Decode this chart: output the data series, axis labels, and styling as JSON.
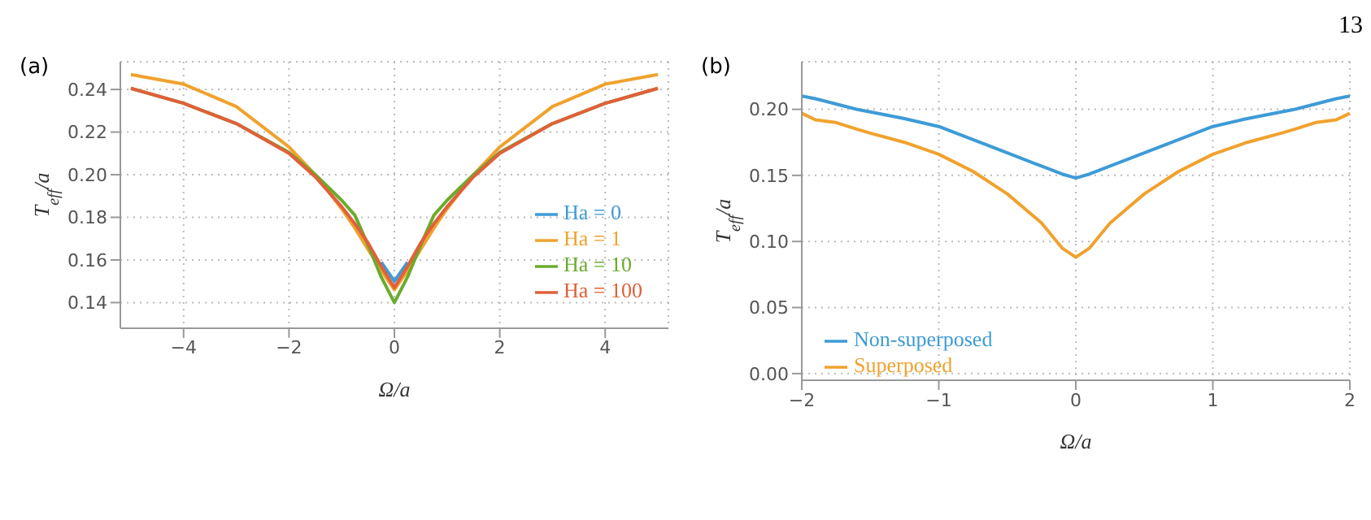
{
  "chart_data": [
    {
      "type": "line",
      "title": "(a)",
      "xlabel": "Ω/a",
      "ylabel": "T$_{eff}$/a",
      "x": [
        -5,
        -4,
        -3,
        -2,
        -1.5,
        -1,
        -0.75,
        -0.5,
        -0.25,
        0,
        0.25,
        0.5,
        0.75,
        1,
        1.5,
        2,
        3,
        4,
        5
      ],
      "xlim": [
        -5.2,
        5.2
      ],
      "xticks": [
        {
          "value": -4,
          "label": "−4"
        },
        {
          "value": -2,
          "label": "−2"
        },
        0,
        2,
        4
      ],
      "ylim": [
        0.128,
        0.253
      ],
      "yticks": [
        0.14,
        0.16,
        0.18,
        {
          "value": 0.2,
          "label": "0.20"
        },
        0.22,
        0.24
      ],
      "grid": true,
      "legend": "right",
      "line_style": "solid",
      "marker": "none",
      "series": [
        {
          "name": "Ha = 0",
          "color": "#3e9bd6",
          "values": [
            null,
            null,
            null,
            null,
            null,
            null,
            null,
            null,
            0.159,
            0.15,
            0.159,
            null,
            null,
            null,
            null,
            null,
            null,
            null,
            null
          ]
        },
        {
          "name": "Ha = 1",
          "color": "#f0a22e",
          "values": [
            0.247,
            0.2425,
            0.232,
            0.213,
            0.2,
            0.184,
            0.175,
            0.165,
            0.155,
            0.146,
            0.155,
            0.165,
            0.175,
            0.184,
            0.2,
            0.213,
            0.232,
            0.2425,
            0.247
          ]
        },
        {
          "name": "Ha = 10",
          "color": "#6aab2e",
          "values": [
            0.2405,
            0.2335,
            0.224,
            0.2105,
            0.2,
            0.188,
            0.181,
            0.167,
            0.152,
            0.14,
            0.152,
            0.167,
            0.181,
            0.188,
            0.2,
            0.2105,
            0.224,
            0.2335,
            0.2405
          ]
        },
        {
          "name": "Ha = 100",
          "color": "#e0603a",
          "values": [
            0.2405,
            0.2335,
            0.224,
            0.21,
            0.199,
            0.185,
            0.177,
            0.168,
            0.157,
            0.147,
            0.157,
            0.168,
            0.177,
            0.185,
            0.199,
            0.21,
            0.224,
            0.2335,
            0.2405
          ]
        }
      ]
    },
    {
      "type": "line",
      "title": "(b)",
      "xlabel": "Ω/a",
      "ylabel": "T$_{eff}$/a",
      "annotations": [
        "13"
      ],
      "x": [
        -2,
        -1.9,
        -1.75,
        -1.6,
        -1.5,
        -1.25,
        -1,
        -0.75,
        -0.5,
        -0.25,
        -0.1,
        0,
        0.1,
        0.25,
        0.5,
        0.75,
        1,
        1.25,
        1.5,
        1.6,
        1.75,
        1.9,
        2
      ],
      "xlim": [
        -2,
        2
      ],
      "xticks": [
        {
          "value": -2,
          "label": "−2"
        },
        {
          "value": -1,
          "label": "−1"
        },
        0,
        1,
        2
      ],
      "ylim": [
        -0.005,
        0.236
      ],
      "yticks": [
        {
          "value": 0,
          "label": "0.00"
        },
        0.05,
        {
          "value": 0.1,
          "label": "0.10"
        },
        0.15,
        {
          "value": 0.2,
          "label": "0.20"
        }
      ],
      "grid": true,
      "legend": "bottom left",
      "line_style": "solid",
      "marker": "none",
      "series": [
        {
          "name": "Non-superposed",
          "color": "#3e9bd6",
          "values": [
            0.21,
            0.208,
            0.204,
            0.2,
            0.198,
            0.193,
            0.187,
            0.177,
            0.167,
            0.157,
            0.151,
            0.148,
            0.151,
            0.157,
            0.167,
            0.177,
            0.187,
            0.193,
            0.198,
            0.2,
            0.204,
            0.208,
            0.21
          ]
        },
        {
          "name": "Superposed",
          "color": "#f0a22e",
          "values": [
            0.197,
            0.192,
            0.19,
            0.185,
            0.182,
            0.175,
            0.166,
            0.153,
            0.136,
            0.114,
            0.095,
            0.088,
            0.095,
            0.114,
            0.136,
            0.153,
            0.166,
            0.175,
            0.182,
            0.185,
            0.19,
            0.192,
            0.197
          ]
        }
      ]
    }
  ]
}
